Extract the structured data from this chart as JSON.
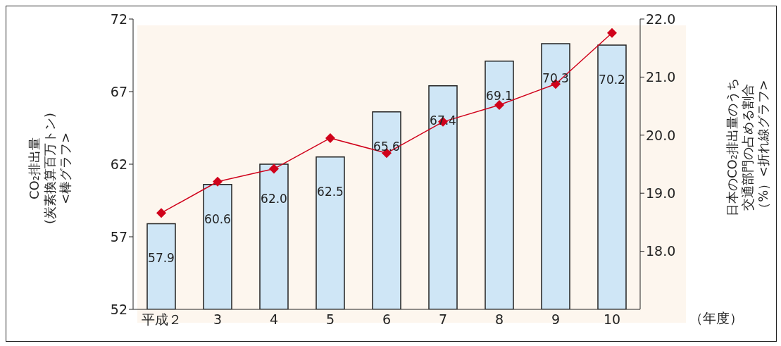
{
  "chart_data": {
    "type": "bar",
    "ylabel": "CO₂排出量\n(炭素換算百万トン)\n<棒グラフ>",
    "y2label": "日本のCO₂排出量のうち交通部門の占める割合（%）<折れ線グラフ>",
    "xlabel": "（年度）",
    "categories": [
      "平成２",
      "3",
      "4",
      "5",
      "6",
      "7",
      "8",
      "9",
      "10"
    ],
    "ylim": [
      52,
      72
    ],
    "yticks": [
      52,
      57,
      62,
      67,
      72
    ],
    "y2lim": [
      17.0,
      22.0
    ],
    "y2ticks": [
      {
        "value": 18,
        "label": "18.0"
      },
      {
        "value": 19,
        "label": "19.0"
      },
      {
        "value": 20,
        "label": "20.0"
      },
      {
        "value": 21,
        "label": "21.0"
      },
      {
        "value": 22,
        "label": "22.0"
      }
    ],
    "series": [
      {
        "color": "#cfe6f6",
        "values": [
          57.9,
          60.6,
          62.0,
          62.5,
          65.6,
          67.4,
          69.1,
          70.3,
          70.2
        ],
        "value_labels": [
          "57.9",
          "60.6",
          "62.0",
          "62.5",
          "65.6",
          "67.4",
          "69.1",
          "70.3",
          "70.2"
        ]
      },
      {
        "type": "line",
        "axis": "y2",
        "color": "#d0021b",
        "values": [
          18.66,
          19.2,
          19.42,
          19.95,
          19.69,
          20.23,
          20.52,
          20.88,
          21.76
        ]
      }
    ],
    "marker": "diamond",
    "grid": false,
    "legend": false
  }
}
